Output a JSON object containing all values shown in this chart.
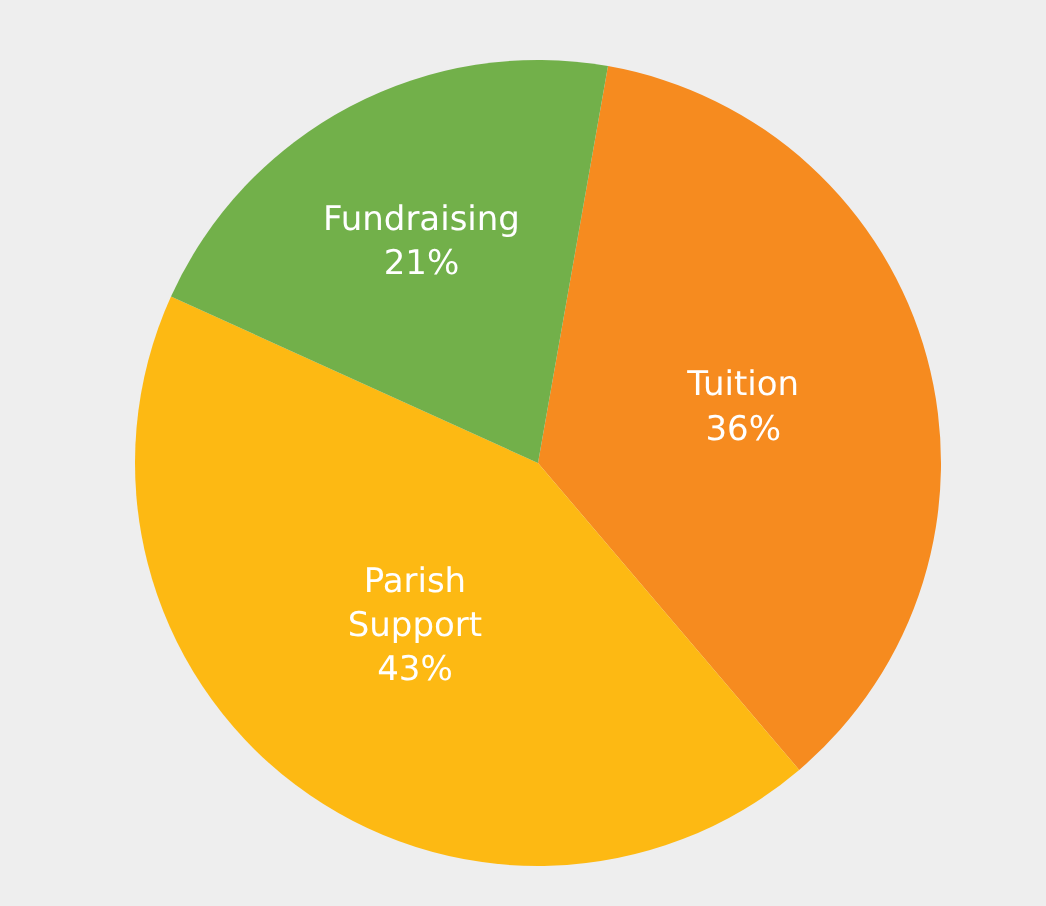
{
  "chart_data": {
    "type": "pie",
    "categories": [
      "Tuition",
      "Parish Support",
      "Fundraising"
    ],
    "values": [
      36,
      43,
      21
    ],
    "colors": [
      "#f68b1f",
      "#fdb913",
      "#72b04a"
    ],
    "value_labels": [
      "36%",
      "43%",
      "21%"
    ]
  }
}
